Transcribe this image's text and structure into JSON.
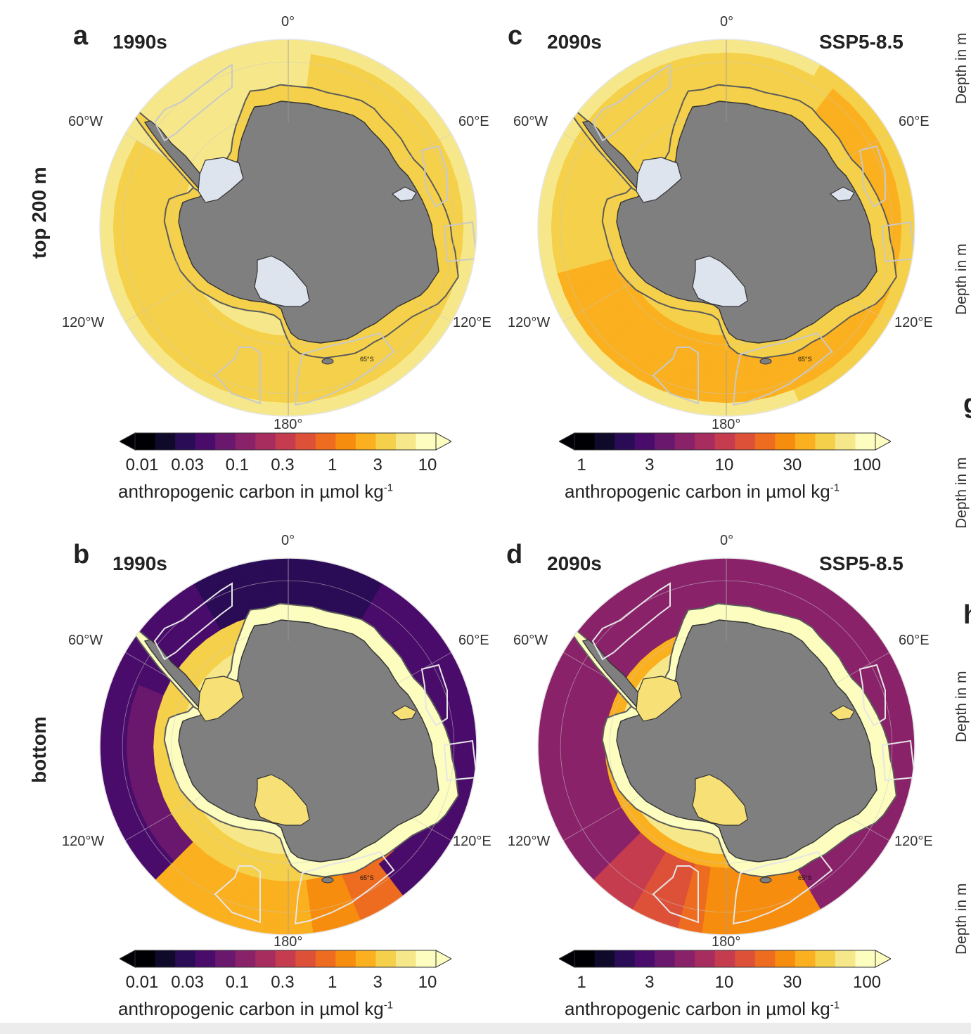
{
  "rows": {
    "top_label": "top 200 m",
    "bottom_label": "bottom"
  },
  "panels": [
    {
      "id": "a",
      "letter": "a",
      "period": "1990s",
      "scenario": "",
      "layer": "top",
      "scale": "low"
    },
    {
      "id": "c",
      "letter": "c",
      "period": "2090s",
      "scenario": "SSP5-8.5",
      "layer": "top",
      "scale": "high"
    },
    {
      "id": "b",
      "letter": "b",
      "period": "1990s",
      "scenario": "",
      "layer": "bottom",
      "scale": "low"
    },
    {
      "id": "d",
      "letter": "d",
      "period": "2090s",
      "scenario": "SSP5-8.5",
      "layer": "bottom",
      "scale": "high"
    }
  ],
  "longitude_labels": {
    "north": "0°",
    "south": "180°",
    "west_upper": "60°W",
    "east_upper": "60°E",
    "west_lower": "120°W",
    "east_lower": "120°E"
  },
  "latitude_label": "65°S",
  "colorbars": {
    "low": {
      "ticks": [
        "0.01",
        "0.03",
        "0.1",
        "0.3",
        "1",
        "3",
        "10"
      ],
      "label_main": "anthropogenic carbon in µmol kg",
      "label_sup": "-1",
      "scale": "log",
      "range": [
        0.01,
        10
      ]
    },
    "high": {
      "ticks": [
        "1",
        "3",
        "10",
        "30",
        "100"
      ],
      "label_main": "anthropogenic carbon in µmol kg",
      "label_sup": "-1",
      "scale": "log",
      "range": [
        1,
        100
      ]
    }
  },
  "colormap": [
    "#000004",
    "#0f0a2a",
    "#2a0b55",
    "#4a0c6b",
    "#6a176e",
    "#8a226a",
    "#a72d5f",
    "#c53c4f",
    "#dd5139",
    "#ee6c20",
    "#f78d0e",
    "#fab01f",
    "#f5d04a",
    "#f6e88a",
    "#fcfdbf"
  ],
  "land_color": "#7f7f7f",
  "ice_shelf_colors": {
    "top": "#dde4ee",
    "bottom": "#f7e177"
  },
  "right_edge": {
    "depth_label": "Depth in m",
    "letters": [
      "g",
      "h"
    ]
  }
}
